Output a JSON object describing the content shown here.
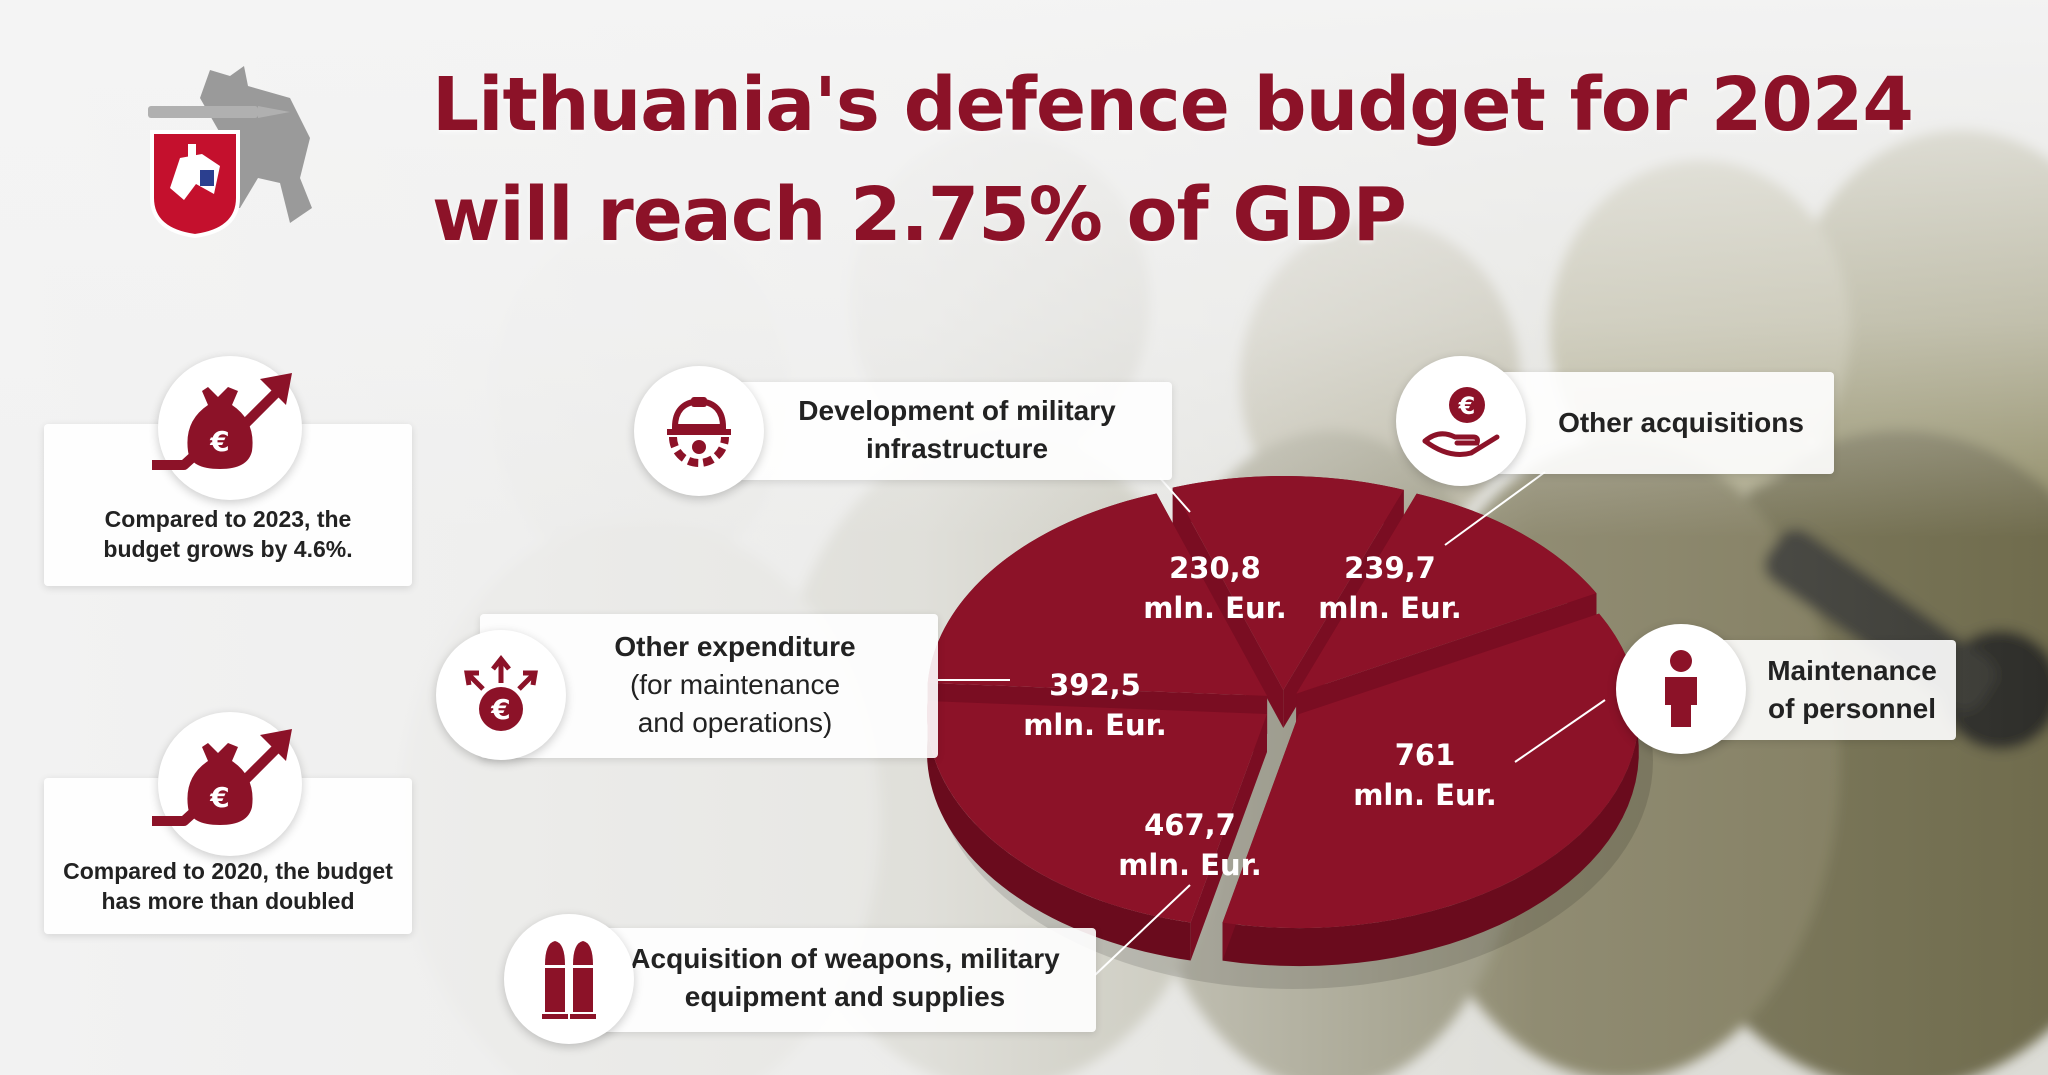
{
  "title": {
    "line1": "Lithuania's defence budget for 2024",
    "line2": "will reach 2.75% of GDP"
  },
  "emblem": {
    "icon": "vytis-emblem-icon"
  },
  "stats": [
    {
      "text_line1": "Compared to 2023, the",
      "text_line2": "budget grows by 4.6%.",
      "icon": "money-bag-growth-icon"
    },
    {
      "text_line1": "Compared to 2020, the budget",
      "text_line2": "has more than doubled",
      "icon": "money-bag-growth-icon"
    }
  ],
  "chart_data": {
    "type": "pie",
    "title": "Lithuania's defence budget for 2024",
    "unit": "mln. Eur.",
    "slices": [
      {
        "key": "maintenance",
        "category": "Maintenance of personnel",
        "value": 761,
        "value_text": "761"
      },
      {
        "key": "weapons",
        "category": "Acquisition of weapons, military equipment and supplies",
        "value": 467.7,
        "value_text": "467,7"
      },
      {
        "key": "other_exp",
        "category": "Other expenditure (for maintenance and operations)",
        "value": 392.5,
        "value_text": "392,5"
      },
      {
        "key": "infra",
        "category": "Development of military infrastructure",
        "value": 230.8,
        "value_text": "230,8"
      },
      {
        "key": "other_acq",
        "category": "Other acquisitions",
        "value": 239.7,
        "value_text": "239,7"
      }
    ]
  },
  "categories": {
    "infra": {
      "line1": "Development of military",
      "line2": "infrastructure",
      "icon": "gear-helmet-icon"
    },
    "other_acq": {
      "line1": "Other acquisitions",
      "icon": "euro-hand-icon"
    },
    "other_exp": {
      "line1": "Other expenditure",
      "line2": "(for maintenance",
      "line3": "and operations)",
      "icon": "euro-arrows-icon"
    },
    "maintenance": {
      "line1": "Maintenance",
      "line2": "of personnel",
      "icon": "person-icon"
    },
    "weapons": {
      "line1": "Acquisition of weapons, military",
      "line2": "equipment and supplies",
      "icon": "ammunition-icon"
    }
  },
  "colors": {
    "accent": "#8c1228",
    "accent_dark": "#6a0b1d"
  }
}
